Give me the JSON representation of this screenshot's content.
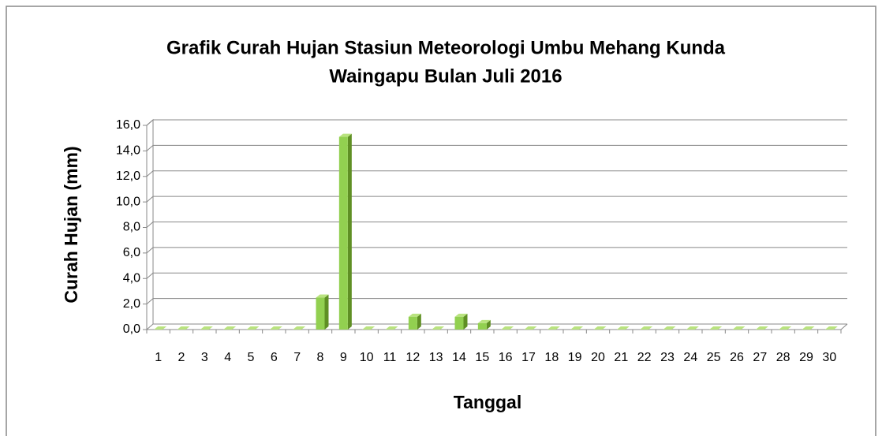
{
  "chart_data": {
    "type": "bar3d",
    "title": [
      "Grafik Curah Hujan Stasiun Meteorologi  Umbu Mehang Kunda",
      "Waingapu Bulan Juli 2016"
    ],
    "x_label": "Tanggal",
    "y_label": "Curah Hujan (mm)",
    "categories": [
      "1",
      "2",
      "3",
      "4",
      "5",
      "6",
      "7",
      "8",
      "9",
      "10",
      "11",
      "12",
      "13",
      "14",
      "15",
      "16",
      "17",
      "18",
      "19",
      "20",
      "21",
      "22",
      "23",
      "24",
      "25",
      "26",
      "27",
      "28",
      "29",
      "30"
    ],
    "values": [
      0,
      0,
      0,
      0,
      0,
      0,
      0,
      2.5,
      15.1,
      0,
      0,
      1.0,
      0,
      1.0,
      0.5,
      0,
      0,
      0,
      0,
      0,
      0,
      0,
      0,
      0,
      0,
      0,
      0,
      0,
      0,
      0
    ],
    "color": "#92d050",
    "ylim": [
      0,
      16
    ],
    "yticks": [
      {
        "value": 0,
        "label": "0,0"
      },
      {
        "value": 2,
        "label": "2,0"
      },
      {
        "value": 4,
        "label": "4,0"
      },
      {
        "value": 6,
        "label": "6,0"
      },
      {
        "value": 8,
        "label": "8,0"
      },
      {
        "value": 10,
        "label": "10,0"
      },
      {
        "value": 12,
        "label": "12,0"
      },
      {
        "value": 14,
        "label": "14,0"
      },
      {
        "value": 16,
        "label": "16,0"
      }
    ],
    "grid": true
  }
}
